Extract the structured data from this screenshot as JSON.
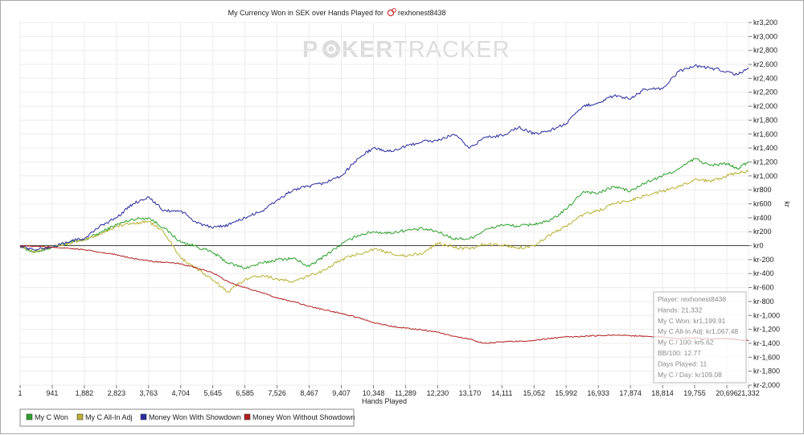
{
  "chart_data": {
    "type": "line",
    "title": "My Currency Won in SEK over Hands Played for",
    "player": "rexhonest8438",
    "xlabel": "Hands Played",
    "ylabel": "kr",
    "xlim": [
      1,
      21332
    ],
    "ylim": [
      -2000,
      3200
    ],
    "grid": true,
    "legend_position": "bottom-left",
    "x_ticks": [
      1,
      941,
      1882,
      2823,
      3763,
      4704,
      5645,
      6585,
      7526,
      8467,
      9407,
      10348,
      11289,
      12230,
      13170,
      14111,
      15052,
      15992,
      16933,
      17874,
      18814,
      19755,
      20696,
      21332
    ],
    "x_tick_labels": [
      "1",
      "941",
      "1,882",
      "2,823",
      "3,763",
      "4,704",
      "5,645",
      "6,585",
      "7,526",
      "8,467",
      "9,407",
      "10,348",
      "11,289",
      "12,230",
      "13,170",
      "14,111",
      "15,052",
      "15,992",
      "16,933",
      "17,874",
      "18,814",
      "19,755",
      "20,696",
      "21,332"
    ],
    "y_ticks": [
      3200,
      3000,
      2800,
      2600,
      2400,
      2200,
      2000,
      1800,
      1600,
      1400,
      1200,
      1000,
      800,
      600,
      400,
      200,
      0,
      -200,
      -400,
      -600,
      -800,
      -1000,
      -1200,
      -1400,
      -1600,
      -1800,
      -2000
    ],
    "y_tick_labels": [
      "kr3,200",
      "kr3,000",
      "kr2,800",
      "kr2,600",
      "kr2,400",
      "kr2,200",
      "kr2,000",
      "kr1,800",
      "kr1,600",
      "kr1,400",
      "kr1,200",
      "kr1,000",
      "kr800",
      "kr600",
      "kr400",
      "kr200",
      "kr0",
      "kr-200",
      "kr-400",
      "kr-600",
      "kr-800",
      "kr-1,000",
      "kr-1,200",
      "kr-1,400",
      "kr-1,600",
      "kr-1,800",
      "kr-2,000"
    ],
    "series": [
      {
        "name": "My C Won",
        "color": "#2ca02c",
        "x": [
          1,
          400,
          941,
          1500,
          1882,
          2400,
          2823,
          3300,
          3763,
          4200,
          4704,
          5100,
          5645,
          6100,
          6585,
          7100,
          7526,
          8000,
          8467,
          8900,
          9407,
          9900,
          10348,
          10800,
          11289,
          11800,
          12230,
          12700,
          13170,
          13600,
          14111,
          14600,
          15052,
          15500,
          15992,
          16500,
          16933,
          17400,
          17874,
          18300,
          18814,
          19300,
          19755,
          20200,
          20696,
          21000,
          21332
        ],
        "y": [
          0,
          -100,
          -20,
          50,
          80,
          200,
          300,
          380,
          400,
          260,
          50,
          0,
          -100,
          -250,
          -320,
          -250,
          -200,
          -180,
          -300,
          -150,
          20,
          150,
          200,
          180,
          220,
          240,
          200,
          100,
          100,
          220,
          300,
          280,
          310,
          350,
          520,
          780,
          750,
          850,
          780,
          900,
          1000,
          1100,
          1250,
          1150,
          1180,
          1100,
          1200
        ]
      },
      {
        "name": "My C All-In Adj",
        "color": "#b8b030",
        "x": [
          1,
          400,
          941,
          1500,
          1882,
          2400,
          2823,
          3300,
          3763,
          4200,
          4704,
          5100,
          5645,
          6100,
          6585,
          7100,
          7526,
          8000,
          8467,
          8900,
          9407,
          9900,
          10348,
          10800,
          11289,
          11800,
          12230,
          12700,
          13170,
          13600,
          14111,
          14600,
          15052,
          15500,
          15992,
          16500,
          16933,
          17400,
          17874,
          18300,
          18814,
          19300,
          19755,
          20200,
          20696,
          21000,
          21332
        ],
        "y": [
          0,
          -80,
          -20,
          40,
          80,
          180,
          280,
          320,
          350,
          200,
          -180,
          -300,
          -500,
          -660,
          -480,
          -420,
          -480,
          -520,
          -430,
          -350,
          -200,
          -120,
          -50,
          -100,
          -150,
          -110,
          40,
          -20,
          -50,
          20,
          10,
          -30,
          0,
          150,
          280,
          450,
          500,
          600,
          650,
          720,
          780,
          850,
          950,
          930,
          1000,
          1040,
          1067
        ]
      },
      {
        "name": "Money Won With Showdown",
        "color": "#2b2b9e",
        "x": [
          1,
          400,
          941,
          1500,
          1882,
          2400,
          2823,
          3300,
          3763,
          4200,
          4704,
          5100,
          5645,
          6100,
          6585,
          7100,
          7526,
          8000,
          8467,
          8900,
          9407,
          9900,
          10348,
          10800,
          11289,
          11800,
          12230,
          12700,
          13170,
          13600,
          14111,
          14600,
          15052,
          15500,
          15992,
          16500,
          16933,
          17400,
          17874,
          18300,
          18814,
          19300,
          19755,
          20200,
          20696,
          21000,
          21332
        ],
        "y": [
          0,
          -60,
          -20,
          70,
          100,
          300,
          400,
          600,
          700,
          500,
          500,
          350,
          250,
          300,
          400,
          500,
          650,
          800,
          850,
          900,
          1000,
          1250,
          1400,
          1350,
          1420,
          1500,
          1500,
          1600,
          1400,
          1550,
          1580,
          1700,
          1600,
          1650,
          1750,
          2000,
          2050,
          2150,
          2100,
          2250,
          2250,
          2500,
          2580,
          2550,
          2500,
          2450,
          2550
        ]
      },
      {
        "name": "Money Won Without Showdown",
        "color": "#b01e1e",
        "x": [
          1,
          400,
          941,
          1500,
          1882,
          2400,
          2823,
          3300,
          3763,
          4200,
          4704,
          5100,
          5645,
          6100,
          6585,
          7100,
          7526,
          8000,
          8467,
          8900,
          9407,
          9900,
          10348,
          10800,
          11289,
          11800,
          12230,
          12700,
          13170,
          13600,
          14111,
          14600,
          15052,
          15500,
          15992,
          16500,
          16933,
          17400,
          17874,
          18300,
          18814,
          19300,
          19755,
          20200,
          20696,
          21000,
          21332
        ],
        "y": [
          0,
          -10,
          -20,
          -40,
          -60,
          -100,
          -130,
          -180,
          -220,
          -240,
          -260,
          -310,
          -390,
          -520,
          -600,
          -680,
          -750,
          -800,
          -870,
          -920,
          -970,
          -1030,
          -1100,
          -1150,
          -1180,
          -1210,
          -1240,
          -1300,
          -1340,
          -1400,
          -1380,
          -1370,
          -1360,
          -1330,
          -1310,
          -1300,
          -1290,
          -1280,
          -1290,
          -1300,
          -1310,
          -1330,
          -1320,
          -1340,
          -1330,
          -1350,
          -1360
        ]
      }
    ]
  },
  "watermark": {
    "part1": "P",
    "part2": "KER",
    "part3": "TRACKER"
  },
  "stats_box": {
    "lines": [
      "Player: rexhonest8438",
      "Hands: 21,332",
      "My C Won: kr1,199.91",
      "My C All-In Adj: kr1,067.48",
      "My C / 100: kr5.62",
      "BB/100: 12.77",
      "Days Played: 11",
      "My C / Day: kr109.08"
    ]
  },
  "legend": {
    "items": [
      {
        "label": "My C Won",
        "color": "#2ca02c"
      },
      {
        "label": "My C All-In Adj",
        "color": "#b8b030"
      },
      {
        "label": "Money Won With Showdown",
        "color": "#2b2b9e"
      },
      {
        "label": "Money Won Without Showdown",
        "color": "#b01e1e"
      }
    ]
  },
  "colors": {
    "zero_line": "#404040",
    "grid": "#ececec",
    "axis": "#7a7a7a"
  }
}
